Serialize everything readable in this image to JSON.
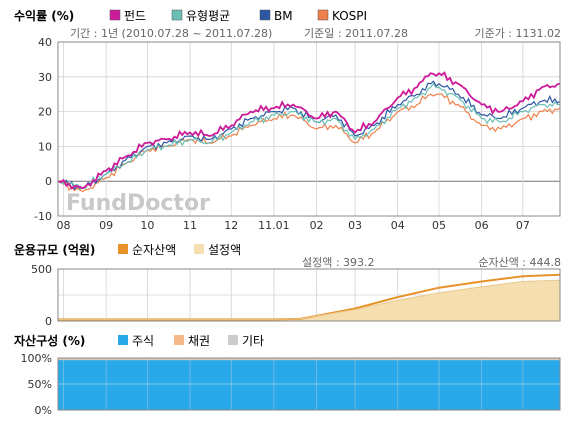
{
  "chart_data": [
    {
      "type": "line",
      "title": "수익률 (%)",
      "legend": [
        "펀드",
        "유형평균",
        "BM",
        "KOSPI"
      ],
      "legend_position": "top",
      "info": {
        "period": "기간 : 1년 (2010.07.28 ~ 2011.07.28)",
        "base_date": "기준일 : 2011.07.28",
        "base_price": "기준가 : 1131.02"
      },
      "watermark": "FundDoctor",
      "x": [
        "2010-07-28",
        "2010-08-15",
        "2010-09-01",
        "2010-09-15",
        "2010-10-01",
        "2010-10-15",
        "2010-11-01",
        "2010-11-15",
        "2010-12-01",
        "2010-12-15",
        "2011-01-01",
        "2011-01-15",
        "2011-02-01",
        "2011-02-15",
        "2011-03-01",
        "2011-03-15",
        "2011-04-01",
        "2011-04-15",
        "2011-04-25",
        "2011-05-01",
        "2011-05-15",
        "2011-06-01",
        "2011-06-15",
        "2011-07-01",
        "2011-07-15",
        "2011-07-28"
      ],
      "x_ticks": [
        {
          "date": "2010-08-01",
          "label": "08"
        },
        {
          "date": "2010-09-01",
          "label": "09"
        },
        {
          "date": "2010-10-01",
          "label": "10"
        },
        {
          "date": "2010-11-01",
          "label": "11"
        },
        {
          "date": "2010-12-01",
          "label": "12"
        },
        {
          "date": "2011-01-01",
          "label": "11.01"
        },
        {
          "date": "2011-02-01",
          "label": "02"
        },
        {
          "date": "2011-03-01",
          "label": "03"
        },
        {
          "date": "2011-04-01",
          "label": "04"
        },
        {
          "date": "2011-05-01",
          "label": "05"
        },
        {
          "date": "2011-06-01",
          "label": "06"
        },
        {
          "date": "2011-07-01",
          "label": "07"
        }
      ],
      "ylim": [
        -10,
        40
      ],
      "yticks": [
        -10,
        0,
        10,
        20,
        30,
        40
      ],
      "grid": true,
      "series": [
        {
          "name": "펀드",
          "color": "#cc1a99",
          "values": [
            0,
            -2,
            3,
            7,
            11,
            12,
            14,
            13,
            16,
            20,
            21,
            22,
            18,
            20,
            14,
            17,
            24,
            27,
            31,
            31,
            28,
            22,
            20,
            23,
            27,
            28
          ]
        },
        {
          "name": "유형평균",
          "color": "#6bbfb4",
          "values": [
            0,
            -2,
            2,
            5,
            9,
            10,
            12,
            11,
            14,
            17,
            19,
            20,
            17,
            18,
            12,
            15,
            21,
            24,
            27,
            27,
            24,
            18,
            17,
            20,
            22,
            22
          ]
        },
        {
          "name": "BM",
          "color": "#2c57a4",
          "values": [
            0,
            -2,
            2,
            6,
            10,
            11,
            13,
            12,
            15,
            18,
            20,
            21,
            17,
            19,
            13,
            16,
            22,
            25,
            28,
            28,
            25,
            19,
            18,
            21,
            23,
            23
          ]
        },
        {
          "name": "KOSPI",
          "color": "#f0804a",
          "values": [
            0,
            -3,
            1,
            5,
            9,
            10,
            12,
            11,
            13,
            16,
            18,
            19,
            15,
            16,
            11,
            14,
            20,
            22,
            25,
            25,
            22,
            16,
            15,
            18,
            20,
            21
          ]
        }
      ]
    },
    {
      "type": "area",
      "title": "운용규모 (억원)",
      "legend": [
        "순자산액",
        "설정액"
      ],
      "info": {
        "setup": "설정액 : 393.2",
        "net_assets": "순자산액 : 444.8"
      },
      "x": [
        "2010-07-28",
        "2010-09-01",
        "2010-10-01",
        "2010-11-01",
        "2010-12-01",
        "2011-01-01",
        "2011-01-20",
        "2011-02-01",
        "2011-03-01",
        "2011-04-01",
        "2011-05-01",
        "2011-06-01",
        "2011-07-01",
        "2011-07-28"
      ],
      "ylim": [
        0,
        500
      ],
      "yticks": [
        0,
        250,
        500
      ],
      "grid": true,
      "series": [
        {
          "name": "순자산액",
          "color": "#e8922a",
          "values": [
            15,
            15,
            15,
            15,
            15,
            15,
            20,
            50,
            120,
            230,
            320,
            380,
            430,
            445
          ]
        },
        {
          "name": "설정액",
          "color": "#f5deb0",
          "values": [
            15,
            15,
            15,
            15,
            15,
            15,
            20,
            48,
            110,
            200,
            270,
            330,
            380,
            393
          ]
        }
      ]
    },
    {
      "type": "area",
      "title": "자산구성 (%)",
      "legend": [
        "주식",
        "채권",
        "기타"
      ],
      "ylim": [
        0,
        100
      ],
      "yticks": [
        "0%",
        "50%",
        "100%"
      ],
      "grid": true,
      "series": [
        {
          "name": "주식",
          "color": "#29a9ea",
          "value": 96
        },
        {
          "name": "채권",
          "color": "#f5b98a",
          "value": 1
        },
        {
          "name": "기타",
          "color": "#cccccc",
          "value": 3
        }
      ]
    }
  ]
}
